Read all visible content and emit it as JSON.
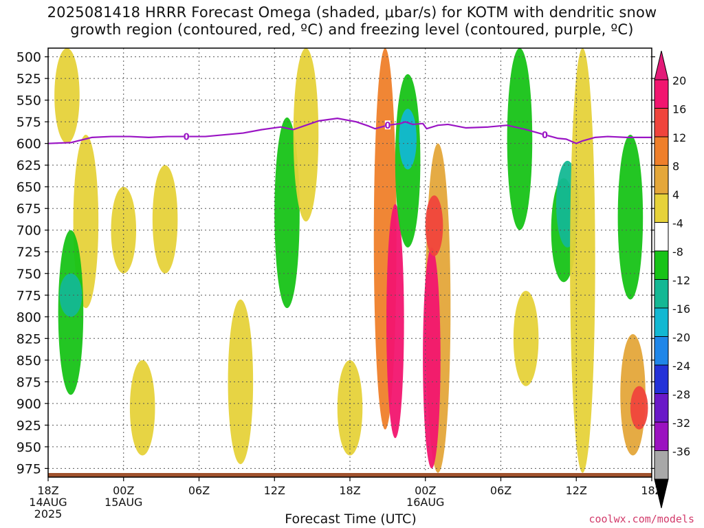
{
  "title_lines": [
    "2025081418 HRRR Forecast Omega (shaded, μbar/s) for KOTM with dendritic snow",
    "growth region (contoured, red, ºC) and freezing level (contoured, purple, ºC)"
  ],
  "credit": "coolwx.com/models",
  "chart_data": {
    "type": "heatmap",
    "title": "2025081418 HRRR Forecast Omega (shaded, μbar/s) for KOTM with dendritic snow growth region (contoured, red, ºC) and freezing level (contoured, purple, ºC)",
    "xlabel": "Forecast Time (UTC)",
    "ylabel": "",
    "y_scale": "pressure",
    "ylim": [
      985,
      490
    ],
    "yticks": [
      500,
      525,
      550,
      575,
      600,
      625,
      650,
      675,
      700,
      725,
      750,
      775,
      800,
      825,
      850,
      875,
      900,
      925,
      950,
      975
    ],
    "xlim_hours": [
      0,
      48
    ],
    "xticks": [
      {
        "hour": 0,
        "lines": [
          "18Z",
          "14AUG",
          "2025"
        ]
      },
      {
        "hour": 6,
        "lines": [
          "00Z",
          "15AUG"
        ]
      },
      {
        "hour": 12,
        "lines": [
          "06Z"
        ]
      },
      {
        "hour": 18,
        "lines": [
          "12Z"
        ]
      },
      {
        "hour": 24,
        "lines": [
          "18Z"
        ]
      },
      {
        "hour": 30,
        "lines": [
          "00Z",
          "16AUG"
        ]
      },
      {
        "hour": 36,
        "lines": [
          "06Z"
        ]
      },
      {
        "hour": 42,
        "lines": [
          "12Z"
        ]
      },
      {
        "hour": 48,
        "lines": [
          "18Z"
        ]
      }
    ],
    "grid": true,
    "colorbar": {
      "labels": [
        20,
        16,
        12,
        8,
        4,
        -4,
        -8,
        -12,
        -16,
        -20,
        -24,
        -28,
        -32,
        -36
      ],
      "colors": [
        "#f2156f",
        "#f0443c",
        "#ef7f2a",
        "#e4a73a",
        "#e6d23a",
        "#ffffff",
        "#17c317",
        "#14b894",
        "#12b8d2",
        "#1f86e8",
        "#2332d8",
        "#6a19c8",
        "#9b12c0",
        "#a8a8a8"
      ],
      "top_cap": "#e31a78",
      "bottom_cap": "#000000"
    },
    "freezing_level": {
      "label": "0",
      "points": [
        [
          0,
          600
        ],
        [
          1.8,
          599
        ],
        [
          3.5,
          593
        ],
        [
          5,
          592
        ],
        [
          6.5,
          592
        ],
        [
          8,
          593
        ],
        [
          9.5,
          592
        ],
        [
          11,
          592
        ],
        [
          12.5,
          592
        ],
        [
          14,
          590
        ],
        [
          15.5,
          588
        ],
        [
          17,
          584
        ],
        [
          18.5,
          581
        ],
        [
          19.5,
          584
        ],
        [
          20.5,
          579
        ],
        [
          21.5,
          574
        ],
        [
          23,
          571
        ],
        [
          24.5,
          575
        ],
        [
          25.5,
          580
        ],
        [
          26,
          583
        ],
        [
          27,
          579
        ],
        [
          28,
          577
        ],
        [
          28.4,
          575
        ],
        [
          29,
          578
        ],
        [
          29.8,
          577
        ],
        [
          30.1,
          583
        ],
        [
          31,
          579
        ],
        [
          31.8,
          578
        ],
        [
          33.2,
          582
        ],
        [
          35,
          581
        ],
        [
          36.5,
          579
        ],
        [
          38,
          584
        ],
        [
          39.5,
          590
        ],
        [
          40.5,
          594
        ],
        [
          41.2,
          595
        ],
        [
          42,
          600
        ],
        [
          42.5,
          597
        ],
        [
          43.5,
          593
        ],
        [
          44.5,
          592
        ],
        [
          46,
          593
        ],
        [
          48,
          593
        ]
      ],
      "label_hours": [
        11,
        27,
        39.5
      ]
    },
    "omega_regions": [
      {
        "value": 4,
        "hour": 1.5,
        "p": [
          490,
          600
        ]
      },
      {
        "value": 4,
        "hour": 3,
        "p": [
          590,
          790
        ]
      },
      {
        "value": -8,
        "hour": 1.8,
        "p": [
          700,
          890
        ]
      },
      {
        "value": -12,
        "hour": 1.8,
        "p": [
          750,
          800
        ]
      },
      {
        "value": 4,
        "hour": 6,
        "p": [
          650,
          750
        ]
      },
      {
        "value": 4,
        "hour": 9.3,
        "p": [
          625,
          750
        ]
      },
      {
        "value": 4,
        "hour": 7.5,
        "p": [
          850,
          960
        ]
      },
      {
        "value": 4,
        "hour": 15.3,
        "p": [
          780,
          970
        ]
      },
      {
        "value": -8,
        "hour": 19,
        "p": [
          570,
          790
        ]
      },
      {
        "value": 4,
        "hour": 20.5,
        "p": [
          490,
          690
        ]
      },
      {
        "value": 4,
        "hour": 24,
        "p": [
          850,
          960
        ]
      },
      {
        "value": 12,
        "hour": 26.8,
        "p": [
          490,
          930
        ]
      },
      {
        "value": 20,
        "hour": 27.6,
        "p": [
          670,
          940
        ]
      },
      {
        "value": -8,
        "hour": 28.6,
        "p": [
          520,
          720
        ]
      },
      {
        "value": -16,
        "hour": 28.6,
        "p": [
          560,
          630
        ]
      },
      {
        "value": 8,
        "hour": 31,
        "p": [
          600,
          980
        ]
      },
      {
        "value": 20,
        "hour": 30.5,
        "p": [
          720,
          975
        ]
      },
      {
        "value": 16,
        "hour": 30.7,
        "p": [
          660,
          730
        ]
      },
      {
        "value": -8,
        "hour": 37.5,
        "p": [
          490,
          700
        ]
      },
      {
        "value": -8,
        "hour": 41,
        "p": [
          640,
          760
        ]
      },
      {
        "value": -12,
        "hour": 41.3,
        "p": [
          620,
          720
        ]
      },
      {
        "value": 4,
        "hour": 38,
        "p": [
          770,
          880
        ]
      },
      {
        "value": 4,
        "hour": 42.5,
        "p": [
          490,
          980
        ]
      },
      {
        "value": -8,
        "hour": 46.3,
        "p": [
          590,
          780
        ]
      },
      {
        "value": 8,
        "hour": 46.5,
        "p": [
          820,
          960
        ]
      },
      {
        "value": 16,
        "hour": 47,
        "p": [
          880,
          930
        ]
      }
    ]
  }
}
